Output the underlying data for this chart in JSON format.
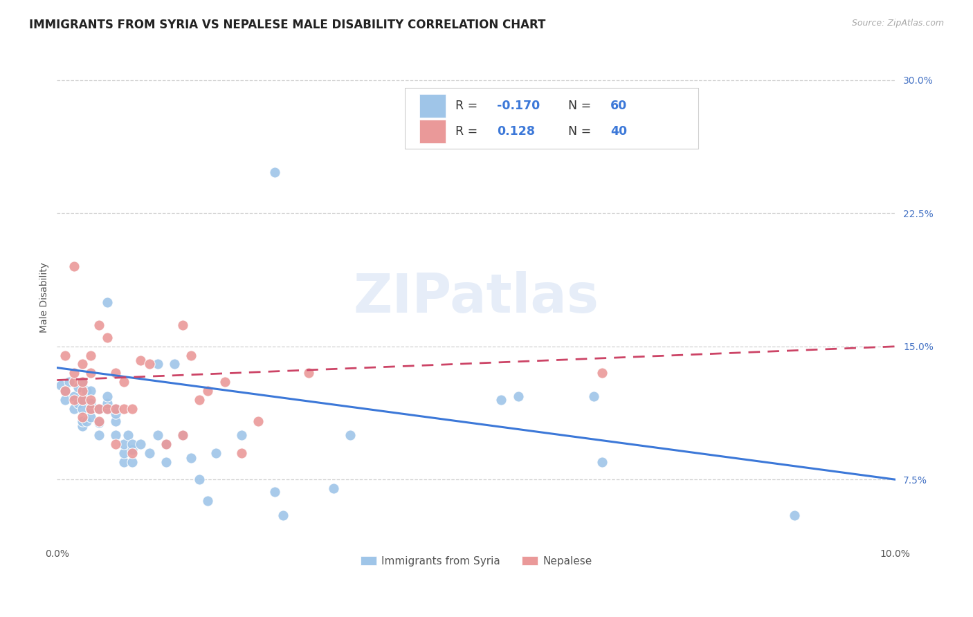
{
  "title": "IMMIGRANTS FROM SYRIA VS NEPALESE MALE DISABILITY CORRELATION CHART",
  "source": "Source: ZipAtlas.com",
  "ylabel": "Male Disability",
  "xlim": [
    0.0,
    0.1
  ],
  "ylim": [
    0.04,
    0.315
  ],
  "xticks": [
    0.0,
    0.02,
    0.04,
    0.06,
    0.08,
    0.1
  ],
  "xtick_labels": [
    "0.0%",
    "",
    "",
    "",
    "",
    "10.0%"
  ],
  "ytick_positions": [
    0.075,
    0.15,
    0.225,
    0.3
  ],
  "ytick_labels": [
    "7.5%",
    "15.0%",
    "22.5%",
    "30.0%"
  ],
  "blue_color": "#9fc5e8",
  "pink_color": "#ea9999",
  "trend_blue": "#3c78d8",
  "trend_pink": "#cc4466",
  "R_blue": -0.17,
  "N_blue": 60,
  "R_pink": 0.128,
  "N_pink": 40,
  "watermark": "ZIPatlas",
  "syria_x": [
    0.0005,
    0.001,
    0.001,
    0.0015,
    0.002,
    0.002,
    0.0025,
    0.0025,
    0.003,
    0.003,
    0.003,
    0.003,
    0.003,
    0.0035,
    0.0035,
    0.004,
    0.004,
    0.004,
    0.004,
    0.005,
    0.005,
    0.005,
    0.006,
    0.006,
    0.006,
    0.006,
    0.007,
    0.007,
    0.007,
    0.007,
    0.008,
    0.008,
    0.008,
    0.0085,
    0.009,
    0.009,
    0.009,
    0.01,
    0.011,
    0.012,
    0.012,
    0.013,
    0.013,
    0.014,
    0.015,
    0.016,
    0.017,
    0.018,
    0.019,
    0.022,
    0.026,
    0.027,
    0.033,
    0.035,
    0.053,
    0.055,
    0.064,
    0.065,
    0.088,
    0.026
  ],
  "syria_y": [
    0.128,
    0.12,
    0.125,
    0.13,
    0.115,
    0.122,
    0.118,
    0.127,
    0.105,
    0.108,
    0.115,
    0.12,
    0.13,
    0.108,
    0.125,
    0.11,
    0.115,
    0.118,
    0.125,
    0.1,
    0.107,
    0.115,
    0.115,
    0.118,
    0.122,
    0.175,
    0.1,
    0.108,
    0.112,
    0.115,
    0.085,
    0.09,
    0.095,
    0.1,
    0.085,
    0.092,
    0.095,
    0.095,
    0.09,
    0.1,
    0.14,
    0.085,
    0.095,
    0.14,
    0.1,
    0.087,
    0.075,
    0.063,
    0.09,
    0.1,
    0.068,
    0.055,
    0.07,
    0.1,
    0.12,
    0.122,
    0.122,
    0.085,
    0.055,
    0.248
  ],
  "nepal_x": [
    0.001,
    0.001,
    0.002,
    0.002,
    0.002,
    0.002,
    0.003,
    0.003,
    0.003,
    0.003,
    0.003,
    0.004,
    0.004,
    0.004,
    0.004,
    0.005,
    0.005,
    0.005,
    0.006,
    0.006,
    0.007,
    0.007,
    0.007,
    0.008,
    0.008,
    0.009,
    0.009,
    0.01,
    0.011,
    0.013,
    0.015,
    0.015,
    0.016,
    0.017,
    0.018,
    0.02,
    0.022,
    0.024,
    0.03,
    0.065
  ],
  "nepal_y": [
    0.125,
    0.145,
    0.12,
    0.13,
    0.135,
    0.195,
    0.11,
    0.12,
    0.125,
    0.13,
    0.14,
    0.115,
    0.12,
    0.135,
    0.145,
    0.108,
    0.115,
    0.162,
    0.115,
    0.155,
    0.095,
    0.115,
    0.135,
    0.115,
    0.13,
    0.09,
    0.115,
    0.142,
    0.14,
    0.095,
    0.1,
    0.162,
    0.145,
    0.12,
    0.125,
    0.13,
    0.09,
    0.108,
    0.135,
    0.135
  ],
  "syria_trend_x": [
    0.0,
    0.1
  ],
  "syria_trend_y": [
    0.138,
    0.075
  ],
  "nepal_trend_x": [
    0.0,
    0.1
  ],
  "nepal_trend_y": [
    0.131,
    0.15
  ],
  "background_color": "#ffffff",
  "grid_color": "#cccccc",
  "title_fontsize": 12,
  "axis_label_fontsize": 10,
  "tick_fontsize": 10,
  "legend_fontsize": 12
}
